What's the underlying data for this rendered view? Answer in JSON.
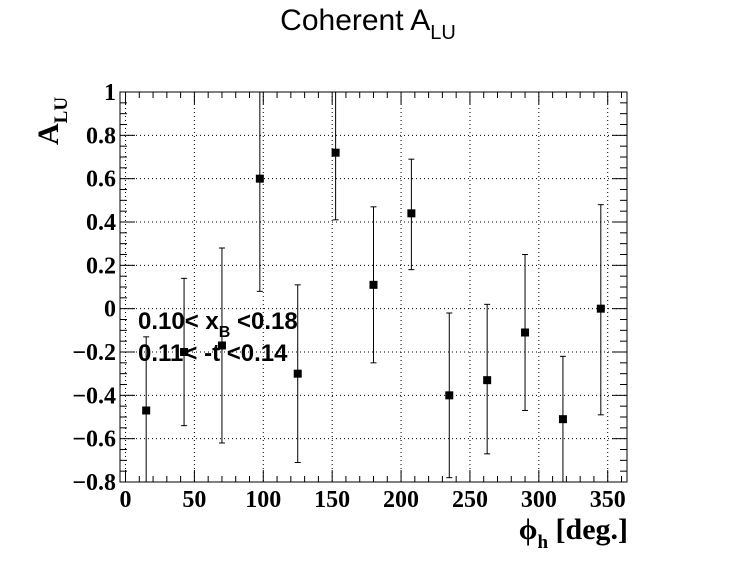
{
  "chart_data": {
    "type": "scatter",
    "title": {
      "main": "Coherent A",
      "sub": "LU"
    },
    "xlabel": {
      "main": "ϕ",
      "sub": "h",
      "suffix": " [deg.]"
    },
    "ylabel": {
      "main": "A",
      "sub": "LU"
    },
    "xlim": [
      -4,
      364
    ],
    "ylim": [
      -0.8,
      1.0
    ],
    "xticks": [
      0,
      50,
      100,
      150,
      200,
      250,
      300,
      350
    ],
    "xtick_labels": [
      "0",
      "50",
      "100",
      "150",
      "200",
      "250",
      "300",
      "350"
    ],
    "yticks": [
      -0.8,
      -0.6,
      -0.4,
      -0.2,
      0,
      0.2,
      0.4,
      0.6,
      0.8,
      1.0
    ],
    "ytick_labels": [
      "−0.8",
      "−0.6",
      "−0.4",
      "−0.2",
      "0",
      "0.2",
      "0.4",
      "0.6",
      "0.8",
      "1"
    ],
    "grid": true,
    "series": [
      {
        "x": [
          15.0,
          42.5,
          70.0,
          97.5,
          125.0,
          152.5,
          180.0,
          207.5,
          235.0,
          262.5,
          290.0,
          317.5,
          345.0
        ],
        "y": [
          -0.47,
          -0.2,
          -0.17,
          0.6,
          -0.3,
          0.72,
          0.11,
          0.44,
          -0.4,
          -0.33,
          -0.11,
          -0.51,
          0.0
        ],
        "err_low": [
          0.35,
          0.34,
          0.45,
          0.52,
          0.41,
          0.31,
          0.36,
          0.26,
          0.38,
          0.34,
          0.36,
          0.29,
          0.49
        ],
        "err_high": [
          0.34,
          0.34,
          0.45,
          0.4,
          0.41,
          0.28,
          0.36,
          0.25,
          0.38,
          0.35,
          0.36,
          0.29,
          0.48
        ]
      }
    ],
    "annotations": [
      {
        "pre": "0.10< x",
        "sub": "B",
        "post": " <0.18"
      },
      {
        "pre": "0.11< -t <0.14",
        "sub": "",
        "post": ""
      }
    ]
  }
}
